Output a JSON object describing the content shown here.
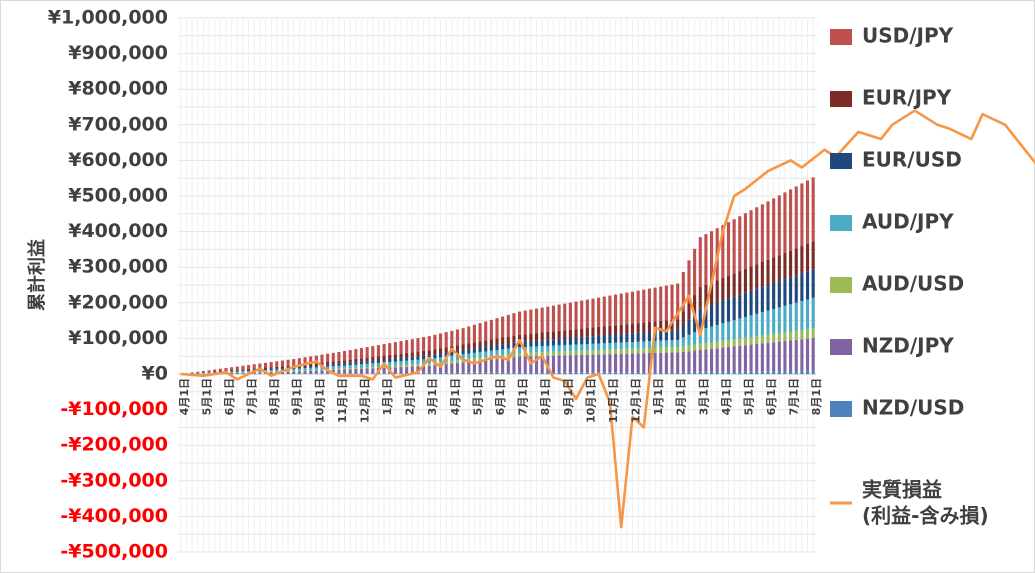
{
  "chart_data": {
    "type": "bar",
    "subtype": "stacked bar with line overlay",
    "ylabel": "累計利益",
    "ylim": [
      -500000,
      1000000
    ],
    "y_tick_step": 50000,
    "y_tick_labels": [
      "¥1,000,000",
      "¥900,000",
      "¥800,000",
      "¥700,000",
      "¥600,000",
      "¥500,000",
      "¥400,000",
      "¥300,000",
      "¥200,000",
      "¥100,000",
      "¥0",
      "-¥100,000",
      "-¥200,000",
      "-¥300,000",
      "-¥400,000",
      "-¥500,000"
    ],
    "y_tick_values": [
      1000000,
      900000,
      800000,
      700000,
      600000,
      500000,
      400000,
      300000,
      200000,
      100000,
      0,
      -100000,
      -200000,
      -300000,
      -400000,
      -500000
    ],
    "x_tick_labels": [
      "4月1日",
      "5月1日",
      "6月1日",
      "7月1日",
      "8月1日",
      "9月1日",
      "10月1日",
      "11月1日",
      "12月1日",
      "1月1日",
      "2月1日",
      "3月1日",
      "4月1日",
      "5月1日",
      "6月1日",
      "7月1日",
      "8月1日",
      "9月1日",
      "10月1日",
      "11月1日",
      "12月1日",
      "1月1日",
      "2月1日",
      "3月1日",
      "4月1日",
      "5月1日",
      "6月1日",
      "7月1日",
      "8月1日"
    ],
    "periods_per_month": 4,
    "legend_position": "right",
    "grid": true,
    "series": [
      {
        "name": "NZD/USD",
        "color": "#4f81bd",
        "kind": "bar",
        "anchors": [
          [
            0,
            0
          ],
          [
            28,
            2000
          ],
          [
            60,
            4000
          ],
          [
            90,
            6000
          ],
          [
            112,
            9000
          ],
          [
            200,
            11000
          ]
        ]
      },
      {
        "name": "NZD/JPY",
        "color": "#8064a2",
        "kind": "bar",
        "anchors": [
          [
            0,
            0
          ],
          [
            20,
            5000
          ],
          [
            44,
            20000
          ],
          [
            60,
            45000
          ],
          [
            88,
            55000
          ],
          [
            112,
            92000
          ],
          [
            130,
            120000
          ],
          [
            160,
            138000
          ],
          [
            200,
            150000
          ]
        ]
      },
      {
        "name": "AUD/USD",
        "color": "#9bbb59",
        "kind": "bar",
        "anchors": [
          [
            0,
            0
          ],
          [
            30,
            3000
          ],
          [
            60,
            10000
          ],
          [
            88,
            15000
          ],
          [
            112,
            27000
          ],
          [
            140,
            30000
          ],
          [
            200,
            67000
          ]
        ]
      },
      {
        "name": "AUD/JPY",
        "color": "#4bacc6",
        "kind": "bar",
        "anchors": [
          [
            0,
            0
          ],
          [
            28,
            8000
          ],
          [
            50,
            15000
          ],
          [
            88,
            20000
          ],
          [
            92,
            40000
          ],
          [
            112,
            86000
          ],
          [
            140,
            103000
          ],
          [
            170,
            113000
          ],
          [
            200,
            148000
          ]
        ]
      },
      {
        "name": "EUR/USD",
        "color": "#1f497d",
        "kind": "bar",
        "anchors": [
          [
            0,
            0
          ],
          [
            28,
            6000
          ],
          [
            60,
            15000
          ],
          [
            88,
            28000
          ],
          [
            92,
            60000
          ],
          [
            112,
            80000
          ],
          [
            140,
            92000
          ],
          [
            170,
            98000
          ],
          [
            200,
            109000
          ]
        ]
      },
      {
        "name": "EUR/JPY",
        "color": "#7b2c27",
        "kind": "bar",
        "anchors": [
          [
            0,
            0
          ],
          [
            28,
            8000
          ],
          [
            60,
            20000
          ],
          [
            88,
            30000
          ],
          [
            92,
            60000
          ],
          [
            112,
            78000
          ],
          [
            140,
            80000
          ],
          [
            170,
            80000
          ],
          [
            200,
            80000
          ]
        ]
      },
      {
        "name": "USD/JPY",
        "color": "#c0504d",
        "kind": "bar",
        "anchors": [
          [
            0,
            0
          ],
          [
            28,
            25000
          ],
          [
            50,
            45000
          ],
          [
            60,
            65000
          ],
          [
            88,
            100000
          ],
          [
            92,
            140000
          ],
          [
            112,
            180000
          ],
          [
            140,
            210000
          ],
          [
            170,
            250000
          ],
          [
            200,
            290000
          ]
        ]
      },
      {
        "name": "実質損益\n(利益-含み損)",
        "color": "#f79646",
        "kind": "line",
        "points": [
          [
            0,
            0
          ],
          [
            4,
            -5000
          ],
          [
            8,
            5000
          ],
          [
            10,
            -15000
          ],
          [
            14,
            15000
          ],
          [
            16,
            -5000
          ],
          [
            20,
            20000
          ],
          [
            24,
            35000
          ],
          [
            26,
            10000
          ],
          [
            28,
            -5000
          ],
          [
            32,
            -5000
          ],
          [
            34,
            -15000
          ],
          [
            36,
            30000
          ],
          [
            38,
            -10000
          ],
          [
            42,
            5000
          ],
          [
            44,
            45000
          ],
          [
            46,
            20000
          ],
          [
            48,
            70000
          ],
          [
            50,
            40000
          ],
          [
            52,
            30000
          ],
          [
            56,
            50000
          ],
          [
            58,
            40000
          ],
          [
            60,
            95000
          ],
          [
            62,
            30000
          ],
          [
            64,
            50000
          ],
          [
            66,
            -10000
          ],
          [
            68,
            -20000
          ],
          [
            70,
            -70000
          ],
          [
            72,
            -10000
          ],
          [
            74,
            0
          ],
          [
            76,
            -80000
          ],
          [
            78,
            -430000
          ],
          [
            80,
            -120000
          ],
          [
            82,
            -150000
          ],
          [
            84,
            130000
          ],
          [
            86,
            120000
          ],
          [
            88,
            170000
          ],
          [
            90,
            220000
          ],
          [
            92,
            110000
          ],
          [
            96,
            400000
          ],
          [
            98,
            500000
          ],
          [
            100,
            520000
          ],
          [
            104,
            570000
          ],
          [
            108,
            600000
          ],
          [
            110,
            580000
          ],
          [
            114,
            630000
          ],
          [
            116,
            610000
          ],
          [
            120,
            680000
          ],
          [
            124,
            660000
          ],
          [
            126,
            700000
          ],
          [
            130,
            740000
          ],
          [
            134,
            700000
          ],
          [
            136,
            690000
          ],
          [
            140,
            660000
          ],
          [
            142,
            730000
          ],
          [
            146,
            700000
          ],
          [
            150,
            620000
          ],
          [
            152,
            580000
          ],
          [
            154,
            630000
          ],
          [
            156,
            560000
          ],
          [
            160,
            620000
          ],
          [
            164,
            500000
          ],
          [
            166,
            550000
          ],
          [
            168,
            430000
          ],
          [
            172,
            490000
          ],
          [
            176,
            620000
          ],
          [
            178,
            520000
          ],
          [
            182,
            630000
          ],
          [
            186,
            640000
          ],
          [
            188,
            650000
          ]
        ]
      }
    ]
  }
}
